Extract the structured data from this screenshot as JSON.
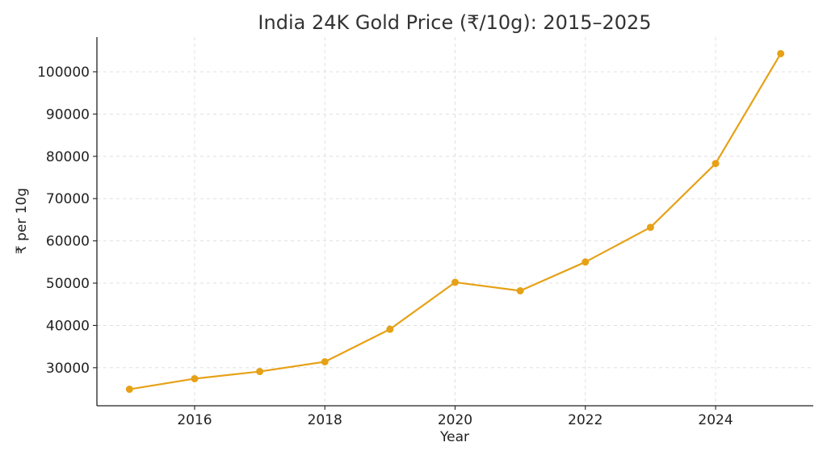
{
  "chart_data": {
    "type": "line",
    "title": "India 24K Gold Price (₹/10g): 2015–2025",
    "xlabel": "Year",
    "ylabel": "₹ per 10g",
    "x": [
      2015,
      2016,
      2017,
      2018,
      2019,
      2020,
      2021,
      2022,
      2023,
      2024,
      2025
    ],
    "series": [
      {
        "values": [
          24900,
          27400,
          29100,
          31400,
          39100,
          50200,
          48200,
          55000,
          63200,
          78300,
          104300
        ]
      }
    ],
    "xticks": [
      2016,
      2018,
      2020,
      2022,
      2024
    ],
    "yticks": [
      30000,
      40000,
      50000,
      60000,
      70000,
      80000,
      90000,
      100000
    ],
    "xlim": [
      2014.5,
      2025.5
    ],
    "ylim": [
      21000,
      108200
    ],
    "grid": true,
    "line_color": "#E6A117",
    "legend": "none"
  }
}
